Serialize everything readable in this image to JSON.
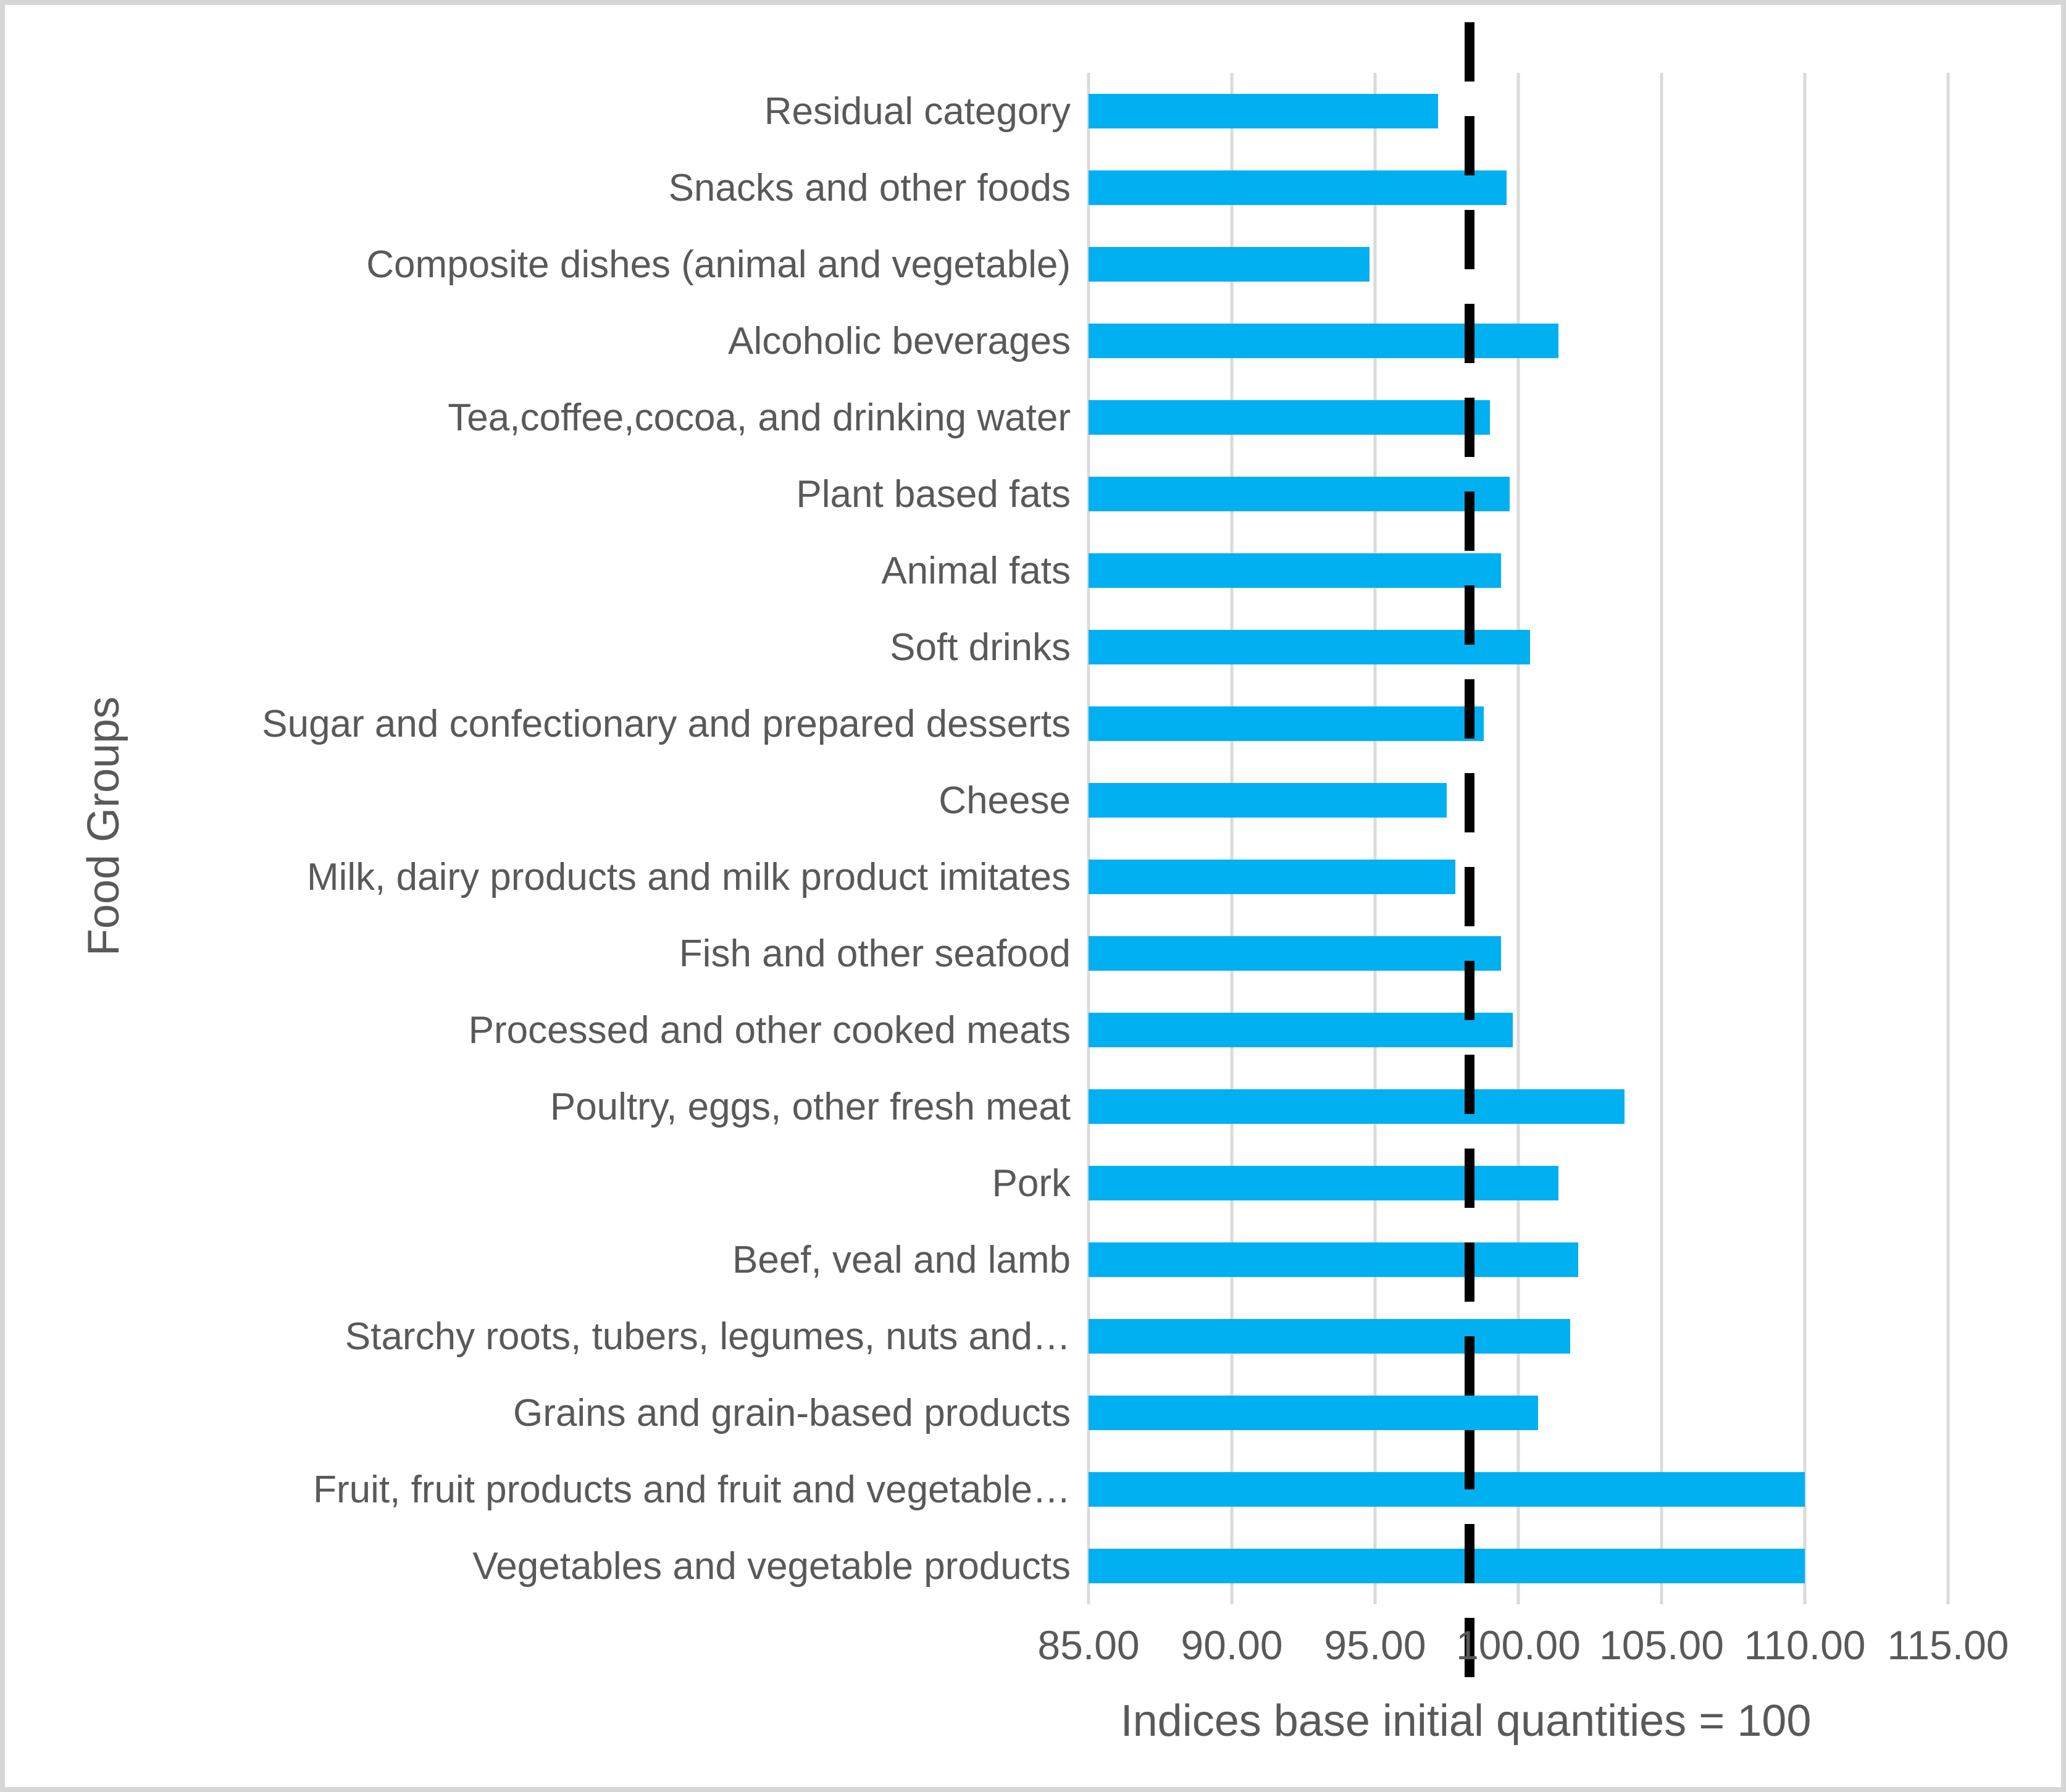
{
  "colors": {
    "bar": "#00B0F0",
    "gridline": "#DADADA",
    "text": "#595959",
    "reference_line": "#000000",
    "figure_border": "#D6D6D6"
  },
  "chart_data": {
    "type": "bar",
    "orientation": "horizontal",
    "title": "",
    "xlabel": "Indices base initial quantities = 100",
    "ylabel": "Food Groups",
    "xlim": [
      85,
      115
    ],
    "xtick_labels": [
      "85.00",
      "90.00",
      "95.00",
      "100.00",
      "105.00",
      "110.00",
      "115.00"
    ],
    "xtick_values": [
      85,
      90,
      95,
      100,
      105,
      110,
      115
    ],
    "grid": true,
    "legend": "none",
    "reference_line": {
      "value": 98.3,
      "style": "dashed",
      "color": "#000000"
    },
    "categories": [
      "Residual category",
      "Snacks and other foods",
      "Composite dishes (animal and vegetable)",
      "Alcoholic beverages",
      "Tea,coffee,cocoa, and drinking water",
      "Plant based fats",
      "Animal fats",
      "Soft drinks",
      "Sugar and confectionary and prepared desserts",
      "Cheese",
      "Milk, dairy products and milk product imitates",
      "Fish and other seafood",
      "Processed and other cooked meats",
      "Poultry, eggs, other fresh meat",
      "Pork",
      "Beef, veal and lamb",
      "Starchy roots, tubers, legumes, nuts and…",
      "Grains and grain-based products",
      "Fruit, fruit products and fruit and vegetable…",
      "Vegetables and vegetable products"
    ],
    "values": [
      97.2,
      99.6,
      94.8,
      101.4,
      99.0,
      99.7,
      99.4,
      100.4,
      98.8,
      97.5,
      97.8,
      99.4,
      99.8,
      103.7,
      101.4,
      102.1,
      101.8,
      100.7,
      110.0,
      110.0
    ]
  }
}
